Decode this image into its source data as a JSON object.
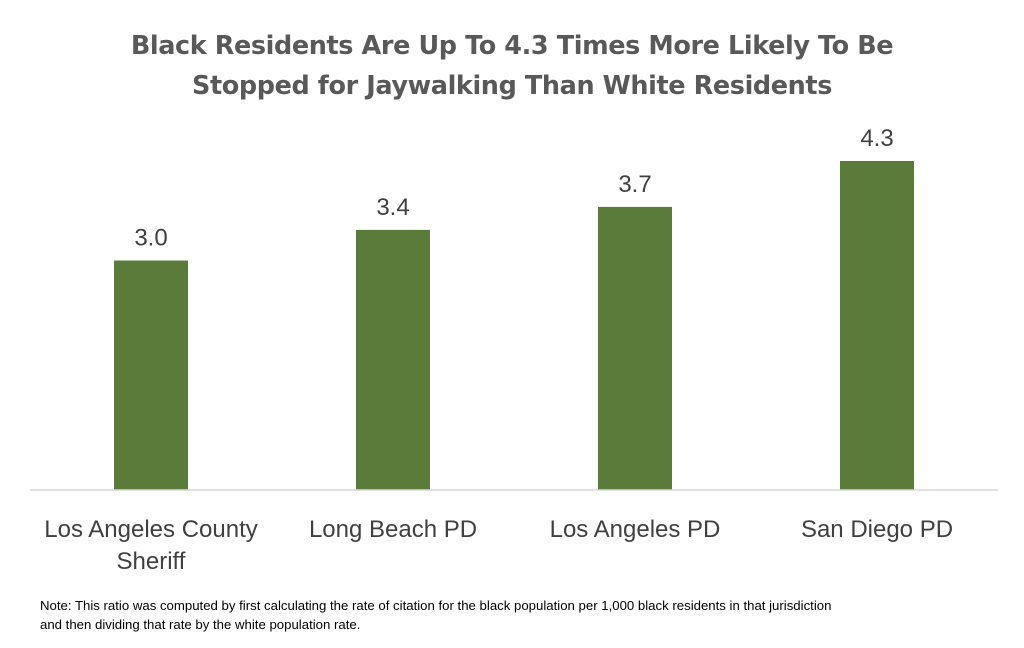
{
  "title_lines": [
    "Black Residents Are Up To 4.3 Times More Likely To Be",
    "Stopped for Jaywalking Than White Residents"
  ],
  "note_lines": [
    "Note: This ratio was computed by first calculating the rate of citation for the black population per 1,000 black residents in that jurisdiction",
    "and then dividing that rate by the white population rate."
  ],
  "chart_data": {
    "type": "bar",
    "categories": [
      [
        "Los Angeles County",
        "Sheriff"
      ],
      [
        "Long Beach PD"
      ],
      [
        "Los Angeles PD"
      ],
      [
        "San Diego PD"
      ]
    ],
    "values": [
      3.0,
      3.4,
      3.7,
      4.3
    ],
    "value_labels": [
      "3.0",
      "3.4",
      "3.7",
      "4.3"
    ],
    "ylim": [
      0,
      4.3
    ],
    "grid": false,
    "legend": "none",
    "bar_color": "#5a7b3a",
    "label_color": "#404040",
    "axis_color": "#d9d9d9"
  }
}
